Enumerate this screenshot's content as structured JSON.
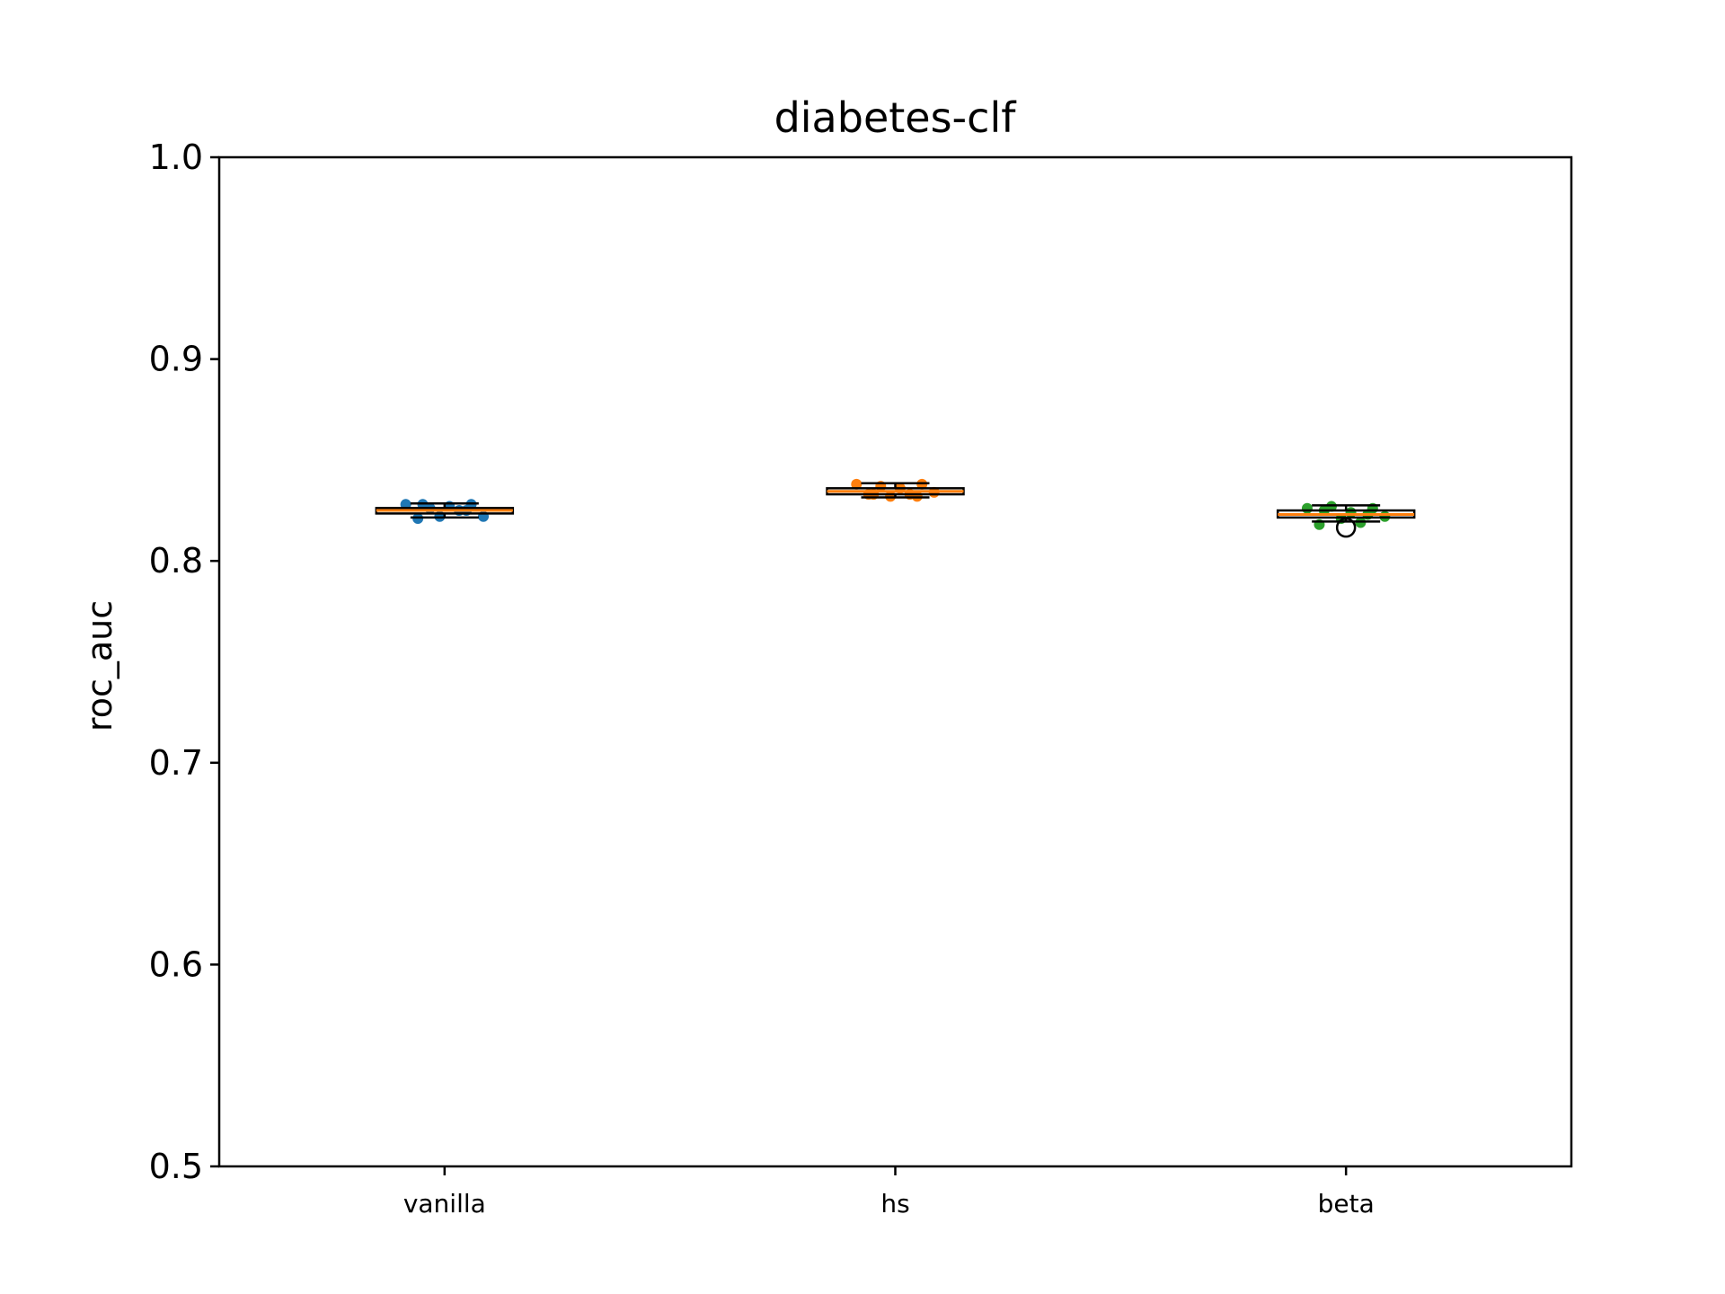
{
  "chart_data": {
    "type": "box",
    "title": "diabetes-clf",
    "xlabel": "",
    "ylabel": "roc_auc",
    "ylim": [
      0.5,
      1.0
    ],
    "yticks": [
      "0.5",
      "0.6",
      "0.7",
      "0.8",
      "0.9",
      "1.0"
    ],
    "categories": [
      "vanilla",
      "hs",
      "beta"
    ],
    "grid": false,
    "legend": "none",
    "colors": {
      "box": "#000000",
      "median": "#ff7f0e",
      "points": [
        "#1f77b4",
        "#ff7f0e",
        "#2ca02c"
      ]
    },
    "boxes": [
      {
        "name": "vanilla",
        "whisker_low": 0.8215,
        "q1": 0.8235,
        "median": 0.825,
        "q3": 0.8262,
        "whisker_high": 0.8285,
        "outliers": [],
        "points": [
          0.828,
          0.821,
          0.826,
          0.822,
          0.827,
          0.825,
          0.828,
          0.822,
          0.828,
          0.825
        ]
      },
      {
        "name": "hs",
        "whisker_low": 0.8315,
        "q1": 0.833,
        "median": 0.8345,
        "q3": 0.836,
        "whisker_high": 0.8385,
        "outliers": [],
        "points": [
          0.838,
          0.833,
          0.837,
          0.832,
          0.836,
          0.833,
          0.838,
          0.834,
          0.833,
          0.832
        ]
      },
      {
        "name": "beta",
        "whisker_low": 0.8195,
        "q1": 0.8215,
        "median": 0.823,
        "q3": 0.825,
        "whisker_high": 0.8275,
        "outliers": [
          0.8165
        ],
        "points": [
          0.826,
          0.818,
          0.827,
          0.821,
          0.824,
          0.819,
          0.826,
          0.822,
          0.825,
          0.823
        ]
      }
    ]
  }
}
